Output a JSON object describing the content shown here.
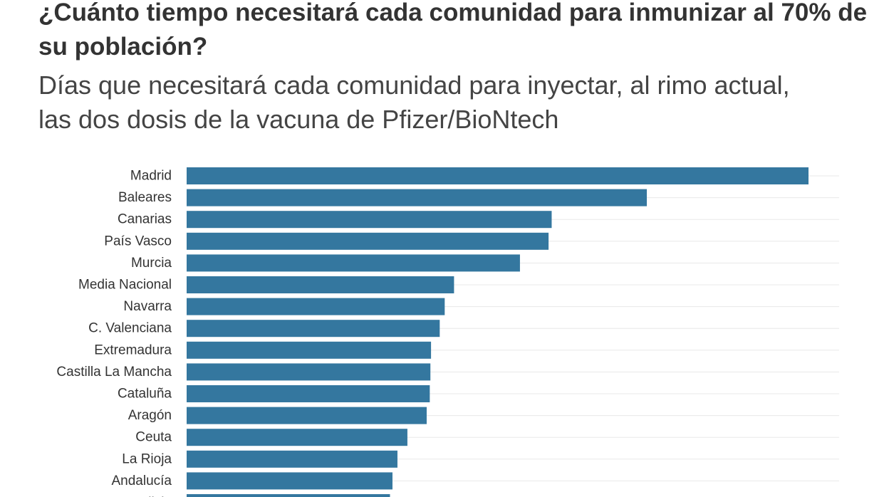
{
  "header": {
    "title": "¿Cuánto tiempo necesitará cada comunidad para inmunizar al 70% de su población?",
    "subtitle": "Días que necesitará cada comunidad para inyectar, al rimo actual, las dos dosis de la vacuna de Pfizer/BioNtech"
  },
  "colors": {
    "bar": "#34779f",
    "gridline": "#e8e8e8",
    "text": "#333333"
  },
  "chart_data": {
    "type": "bar",
    "orientation": "horizontal",
    "title": "¿Cuánto tiempo necesitará cada comunidad para inmunizar al 70% de su población?",
    "subtitle": "Días que necesitará cada comunidad para inyectar, al rimo actual, las dos dosis de la vacuna de Pfizer/BioNtech",
    "xlabel": "",
    "ylabel": "",
    "grid": true,
    "categories": [
      "Madrid",
      "Baleares",
      "Canarias",
      "País Vasco",
      "Murcia",
      "Media Nacional",
      "Navarra",
      "C. Valenciana",
      "Extremadura",
      "Castilla La Mancha",
      "Cataluña",
      "Aragón",
      "Ceuta",
      "La Rioja",
      "Andalucía",
      "Galicia"
    ],
    "values": [
      1000,
      740,
      587,
      582,
      536,
      430,
      415,
      407,
      393,
      392,
      391,
      386,
      355,
      339,
      331,
      327
    ],
    "xlim": [
      0,
      1050
    ]
  }
}
